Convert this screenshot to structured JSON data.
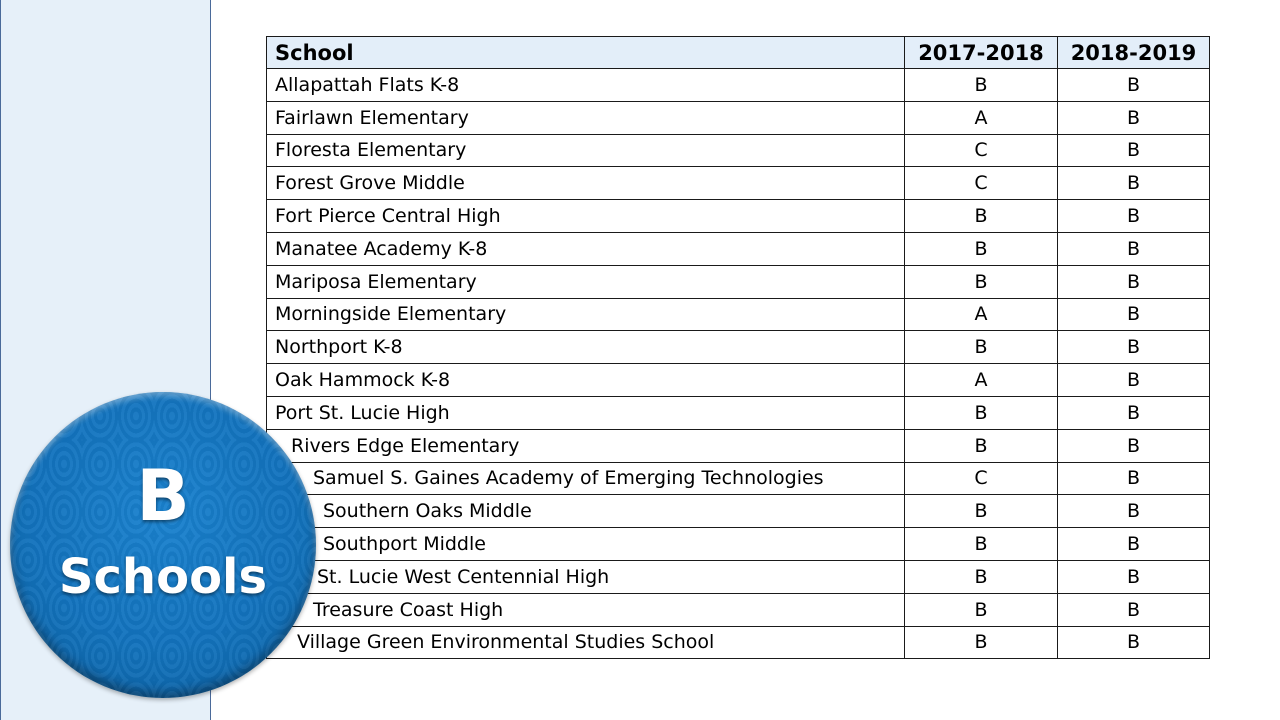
{
  "badge": {
    "letter": "B",
    "word": "Schools",
    "color": "#1373bd"
  },
  "table": {
    "headers": {
      "school": "School",
      "year1": "2017-2018",
      "year2": "2018-2019"
    },
    "rows": [
      {
        "school": "Allapattah Flats K-8",
        "y1": "B",
        "y2": "B"
      },
      {
        "school": "Fairlawn Elementary",
        "y1": "A",
        "y2": "B"
      },
      {
        "school": "Floresta Elementary",
        "y1": "C",
        "y2": "B"
      },
      {
        "school": "Forest Grove Middle",
        "y1": "C",
        "y2": "B"
      },
      {
        "school": "Fort Pierce Central High",
        "y1": "B",
        "y2": "B"
      },
      {
        "school": "Manatee Academy K-8",
        "y1": "B",
        "y2": "B"
      },
      {
        "school": "Mariposa Elementary",
        "y1": "B",
        "y2": "B"
      },
      {
        "school": "Morningside Elementary",
        "y1": "A",
        "y2": "B"
      },
      {
        "school": "Northport K-8",
        "y1": "B",
        "y2": "B"
      },
      {
        "school": "Oak Hammock K-8",
        "y1": "A",
        "y2": "B"
      },
      {
        "school": "Port St. Lucie High",
        "y1": "B",
        "y2": "B"
      },
      {
        "school": "Rivers Edge Elementary",
        "y1": "B",
        "y2": "B"
      },
      {
        "school": "Samuel S. Gaines Academy of Emerging Technologies",
        "y1": "C",
        "y2": "B"
      },
      {
        "school": "Southern Oaks Middle",
        "y1": "B",
        "y2": "B"
      },
      {
        "school": "Southport Middle",
        "y1": "B",
        "y2": "B"
      },
      {
        "school": "St. Lucie West Centennial High",
        "y1": "B",
        "y2": "B"
      },
      {
        "school": "Treasure Coast High",
        "y1": "B",
        "y2": "B"
      },
      {
        "school": "Village Green Environmental Studies School",
        "y1": "B",
        "y2": "B"
      }
    ]
  }
}
